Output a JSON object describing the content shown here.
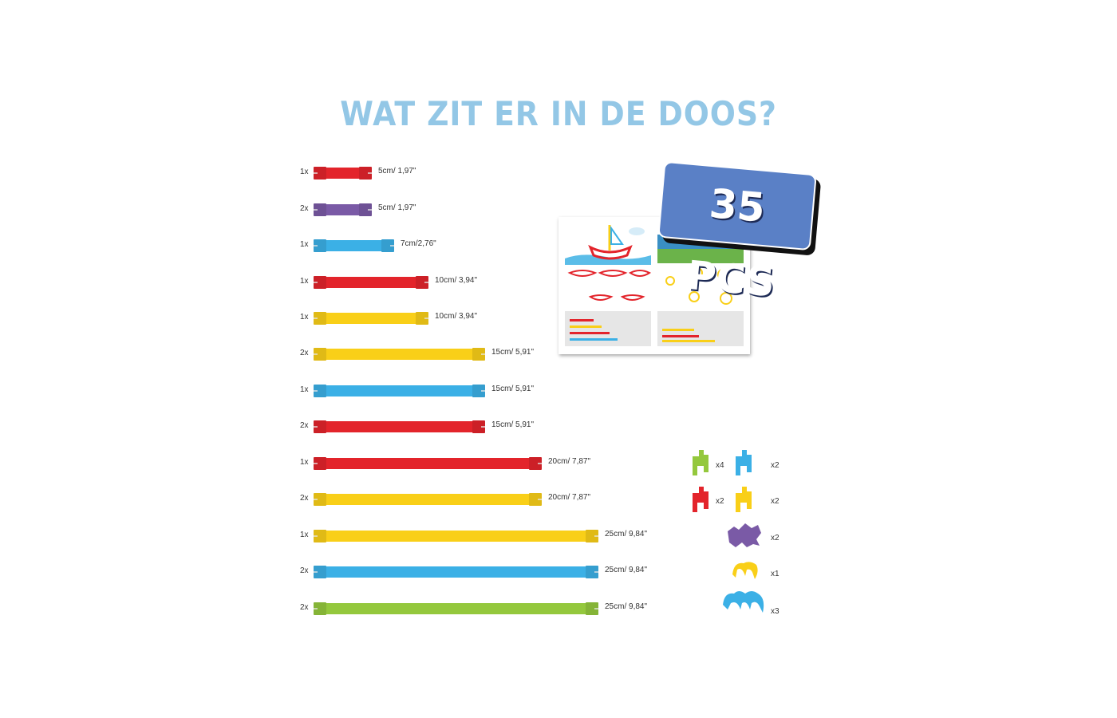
{
  "title": "WAT ZIT ER IN DE DOOS?",
  "badge": "35 PCS",
  "colors": {
    "title": "#93c7e6",
    "badge": "#5a80c6",
    "red": "#e3242b",
    "purple": "#7a5aa6",
    "blue": "#3bb0e6",
    "yellow": "#f9cf18",
    "green": "#94c83d"
  },
  "rods": [
    {
      "qty": "1x",
      "color": "red",
      "cm": 5,
      "label": "5cm/ 1,97\""
    },
    {
      "qty": "2x",
      "color": "purple",
      "cm": 5,
      "label": "5cm/ 1,97\""
    },
    {
      "qty": "1x",
      "color": "blue",
      "cm": 7,
      "label": "7cm/2,76\""
    },
    {
      "qty": "1x",
      "color": "red",
      "cm": 10,
      "label": "10cm/ 3,94\""
    },
    {
      "qty": "1x",
      "color": "yellow",
      "cm": 10,
      "label": "10cm/ 3,94\""
    },
    {
      "qty": "2x",
      "color": "yellow",
      "cm": 15,
      "label": "15cm/ 5,91\""
    },
    {
      "qty": "1x",
      "color": "blue",
      "cm": 15,
      "label": "15cm/ 5,91\""
    },
    {
      "qty": "2x",
      "color": "red",
      "cm": 15,
      "label": "15cm/ 5,91\""
    },
    {
      "qty": "1x",
      "color": "red",
      "cm": 20,
      "label": "20cm/ 7,87\""
    },
    {
      "qty": "2x",
      "color": "yellow",
      "cm": 20,
      "label": "20cm/ 7,87\""
    },
    {
      "qty": "1x",
      "color": "yellow",
      "cm": 25,
      "label": "25cm/ 9,84\""
    },
    {
      "qty": "2x",
      "color": "blue",
      "cm": 25,
      "label": "25cm/ 9,84\""
    },
    {
      "qty": "2x",
      "color": "green",
      "cm": 25,
      "label": "25cm/ 9,84\""
    }
  ],
  "connectors": [
    {
      "type": "corner",
      "color": "green",
      "qty": "x4"
    },
    {
      "type": "corner",
      "color": "blue",
      "qty": "x2"
    },
    {
      "type": "corner",
      "color": "red",
      "qty": "x2"
    },
    {
      "type": "corner",
      "color": "yellow",
      "qty": "x2"
    },
    {
      "type": "cross",
      "color": "purple",
      "qty": "x2"
    },
    {
      "type": "double-clip",
      "color": "yellow",
      "qty": "x1"
    },
    {
      "type": "triple-clip",
      "color": "blue",
      "qty": "x3"
    }
  ]
}
